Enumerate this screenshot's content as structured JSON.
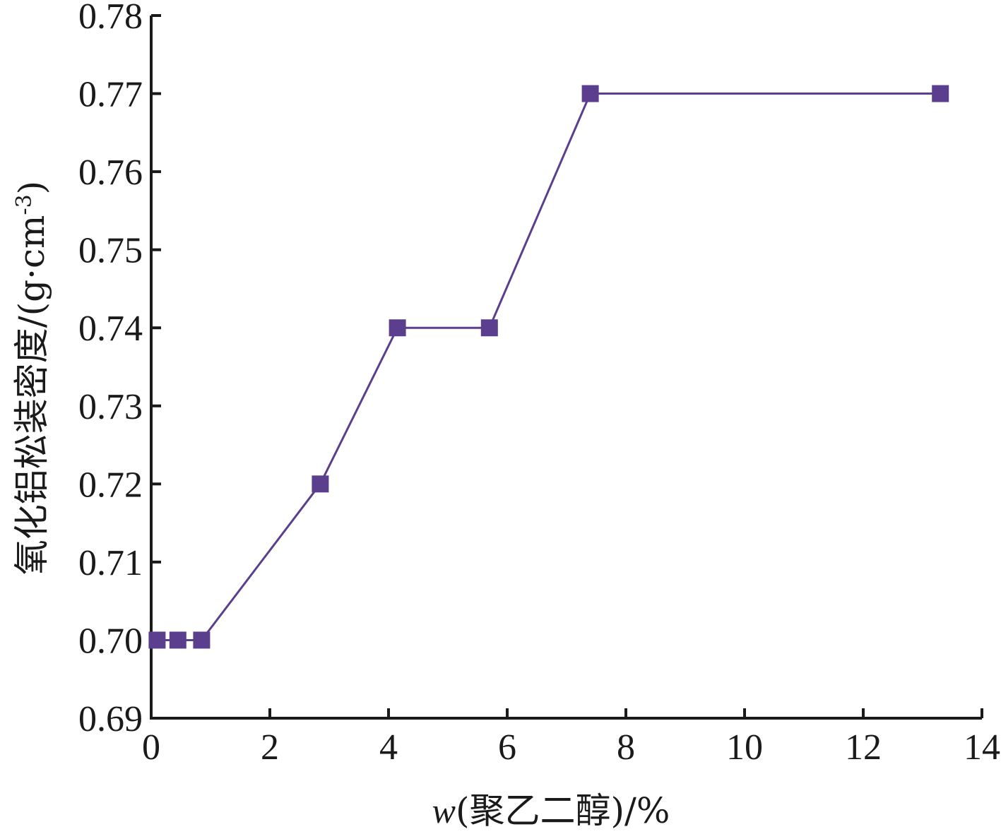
{
  "chart_data": {
    "type": "line",
    "xlabel_parts": {
      "var": "w",
      "rest": "(聚乙二醇)/%"
    },
    "ylabel_parts": {
      "main": "氧化铝松装密度/(g·cm",
      "sup": "-3",
      "close": ")"
    },
    "xlim": [
      0,
      14
    ],
    "ylim": [
      0.69,
      0.78
    ],
    "xticks": [
      "0",
      "2",
      "4",
      "6",
      "8",
      "10",
      "12",
      "14"
    ],
    "yticks": [
      "0.69",
      "0.70",
      "0.71",
      "0.72",
      "0.73",
      "0.74",
      "0.75",
      "0.76",
      "0.77",
      "0.78"
    ],
    "series": [
      {
        "x": [
          0.1,
          0.45,
          0.85,
          2.85,
          4.15,
          5.7,
          7.4,
          13.3
        ],
        "y": [
          0.7,
          0.7,
          0.7,
          0.72,
          0.74,
          0.74,
          0.77,
          0.77
        ]
      }
    ],
    "marker": "square",
    "colors": {
      "line": "#5B3F8E",
      "marker": "#5B3F8E",
      "axis": "#1a1a1a"
    },
    "grid": false
  }
}
